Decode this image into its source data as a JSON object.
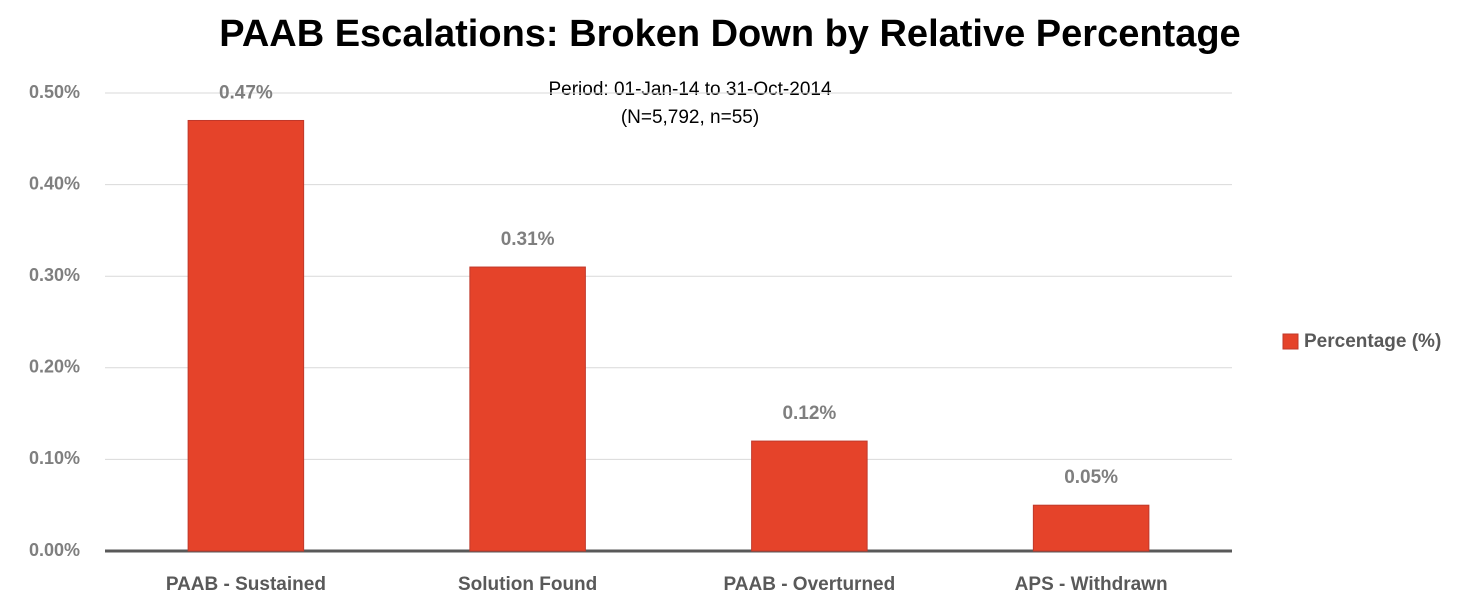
{
  "chart_data": {
    "type": "bar",
    "title": "PAAB Escalations: Broken Down by Relative Percentage",
    "annotations": [
      "Period: 01-Jan-14 to 31-Oct-2014",
      "(N=5,792, n=55)"
    ],
    "categories": [
      "PAAB - Sustained",
      "Solution Found",
      "PAAB - Overturned",
      "APS - Withdrawn"
    ],
    "series": [
      {
        "name": "Percentage (%)",
        "color": "#e5432a",
        "values": [
          0.47,
          0.31,
          0.12,
          0.05
        ],
        "value_labels": [
          "0.47%",
          "0.31%",
          "0.12%",
          "0.05%"
        ]
      }
    ],
    "ylim": [
      0,
      0.5
    ],
    "yticks": [
      {
        "value": 0,
        "label": "0.00%"
      },
      {
        "value": 0.1,
        "label": "0.10%"
      },
      {
        "value": 0.2,
        "label": "0.20%"
      },
      {
        "value": 0.3,
        "label": "0.30%"
      },
      {
        "value": 0.4,
        "label": "0.40%"
      },
      {
        "value": 0.5,
        "label": "0.50%"
      }
    ],
    "grid": true,
    "legend": "right"
  }
}
